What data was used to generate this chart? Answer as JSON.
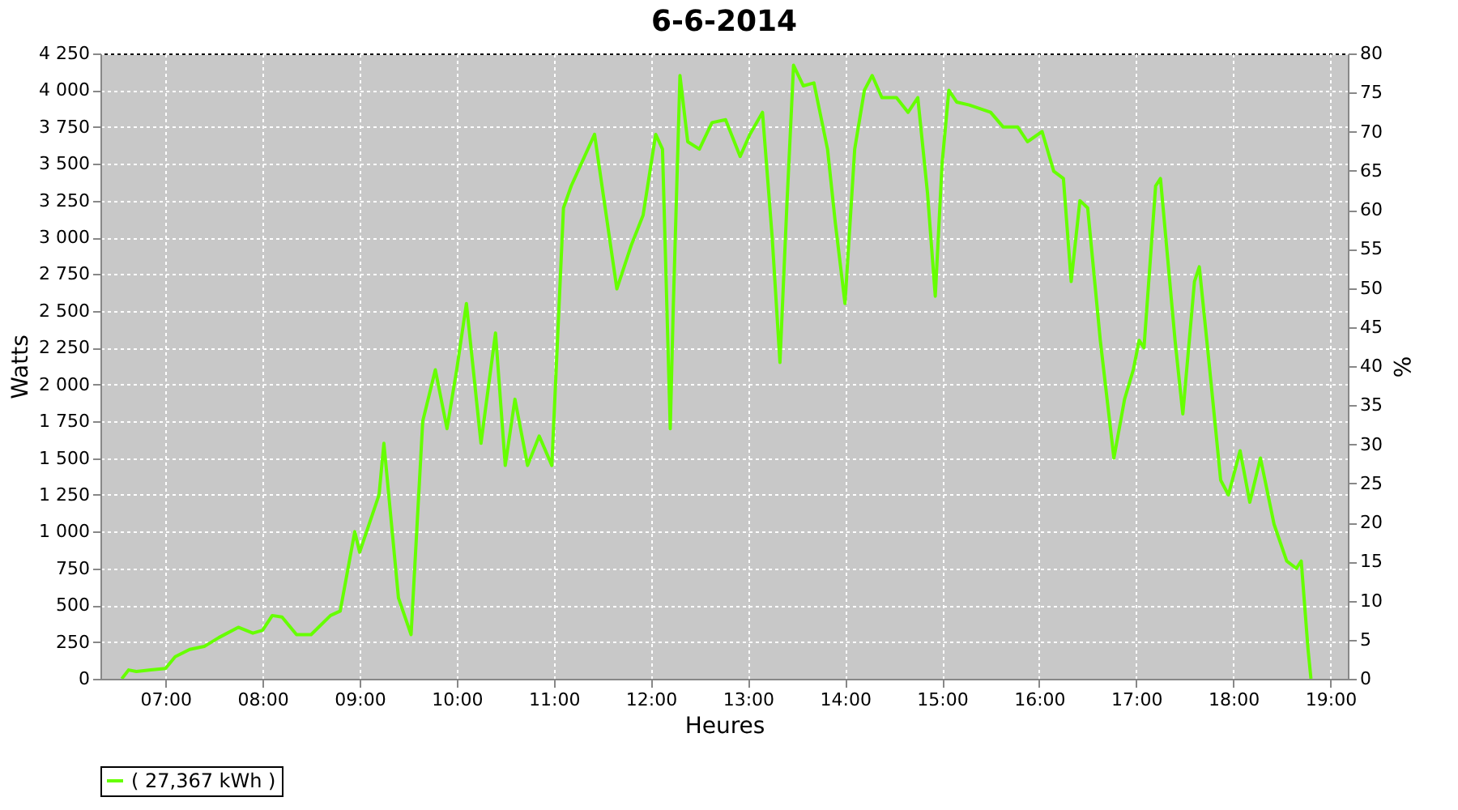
{
  "chart_data": {
    "type": "line",
    "title": "6-6-2014",
    "xlabel": "Heures",
    "ylabel": "Watts",
    "y2label": "%",
    "x": [
      6.55,
      6.62,
      6.7,
      6.85,
      7.0,
      7.1,
      7.25,
      7.4,
      7.55,
      7.75,
      7.9,
      8.0,
      8.1,
      8.2,
      8.35,
      8.5,
      8.7,
      8.8,
      8.95,
      9.0,
      9.2,
      9.25,
      9.4,
      9.53,
      9.65,
      9.78,
      9.9,
      10.0,
      10.1,
      10.25,
      10.4,
      10.5,
      10.6,
      10.73,
      10.85,
      10.98,
      11.1,
      11.18,
      11.42,
      11.65,
      11.8,
      11.92,
      12.05,
      12.12,
      12.2,
      12.23,
      12.3,
      12.38,
      12.5,
      12.63,
      12.77,
      12.92,
      13.02,
      13.15,
      13.25,
      13.33,
      13.4,
      13.47,
      13.57,
      13.68,
      13.82,
      13.9,
      14.0,
      14.1,
      14.2,
      14.28,
      14.38,
      14.53,
      14.65,
      14.75,
      14.85,
      14.93,
      15.0,
      15.07,
      15.15,
      15.28,
      15.5,
      15.63,
      15.78,
      15.88,
      16.03,
      16.15,
      16.25,
      16.33,
      16.42,
      16.5,
      16.63,
      16.77,
      16.88,
      16.97,
      17.03,
      17.08,
      17.2,
      17.25,
      17.4,
      17.48,
      17.6,
      17.65,
      17.75,
      17.87,
      17.95,
      18.07,
      18.17,
      18.28,
      18.42,
      18.55,
      18.65,
      18.7,
      18.77,
      18.8
    ],
    "series": [
      {
        "name": "( 27,367 kWh )",
        "color": "#66ff00",
        "values": [
          0,
          60,
          50,
          60,
          70,
          150,
          200,
          220,
          280,
          350,
          310,
          330,
          430,
          420,
          300,
          300,
          430,
          460,
          1000,
          860,
          1250,
          1600,
          550,
          300,
          1750,
          2100,
          1700,
          2100,
          2550,
          1600,
          2350,
          1450,
          1900,
          1450,
          1650,
          1450,
          3200,
          3350,
          3700,
          2650,
          2950,
          3150,
          3700,
          3600,
          1700,
          2500,
          4100,
          3650,
          3600,
          3780,
          3800,
          3550,
          3700,
          3850,
          3000,
          2150,
          3200,
          4170,
          4030,
          4050,
          3600,
          3100,
          2550,
          3600,
          4000,
          4100,
          3950,
          3950,
          3850,
          3950,
          3300,
          2600,
          3500,
          4000,
          3920,
          3900,
          3850,
          3750,
          3750,
          3650,
          3720,
          3450,
          3400,
          2700,
          3250,
          3200,
          2300,
          1500,
          1900,
          2100,
          2300,
          2250,
          3350,
          3400,
          2300,
          1800,
          2700,
          2800,
          2150,
          1350,
          1250,
          1550,
          1200,
          1500,
          1050,
          800,
          750,
          800,
          200,
          0
        ]
      }
    ],
    "xlim": [
      6.33,
      19.18
    ],
    "xticks": [
      {
        "value": 7,
        "label": "07:00"
      },
      {
        "value": 8,
        "label": "08:00"
      },
      {
        "value": 9,
        "label": "09:00"
      },
      {
        "value": 10,
        "label": "10:00"
      },
      {
        "value": 11,
        "label": "11:00"
      },
      {
        "value": 12,
        "label": "12:00"
      },
      {
        "value": 13,
        "label": "13:00"
      },
      {
        "value": 14,
        "label": "14:00"
      },
      {
        "value": 15,
        "label": "15:00"
      },
      {
        "value": 16,
        "label": "16:00"
      },
      {
        "value": 17,
        "label": "17:00"
      },
      {
        "value": 18,
        "label": "18:00"
      },
      {
        "value": 19,
        "label": "19:00"
      }
    ],
    "ylim": [
      0,
      4250
    ],
    "yticks": [
      0,
      250,
      500,
      750,
      {
        "value": 1000,
        "label": "1 000"
      },
      {
        "value": 1250,
        "label": "1 250"
      },
      {
        "value": 1500,
        "label": "1 500"
      },
      {
        "value": 1750,
        "label": "1 750"
      },
      {
        "value": 2000,
        "label": "2 000"
      },
      {
        "value": 2250,
        "label": "2 250"
      },
      {
        "value": 2500,
        "label": "2 500"
      },
      {
        "value": 2750,
        "label": "2 750"
      },
      {
        "value": 3000,
        "label": "3 000"
      },
      {
        "value": 3250,
        "label": "3 250"
      },
      {
        "value": 3500,
        "label": "3 500"
      },
      {
        "value": 3750,
        "label": "3 750"
      },
      {
        "value": 4000,
        "label": "4 000"
      },
      {
        "value": 4250,
        "label": "4 250"
      }
    ],
    "y2lim": [
      0,
      80
    ],
    "y2ticks": [
      0,
      5,
      10,
      15,
      20,
      25,
      30,
      35,
      40,
      45,
      50,
      55,
      60,
      65,
      70,
      75,
      80
    ],
    "grid": true,
    "legend": "bottom",
    "marker": "none",
    "line_style": "solid"
  }
}
